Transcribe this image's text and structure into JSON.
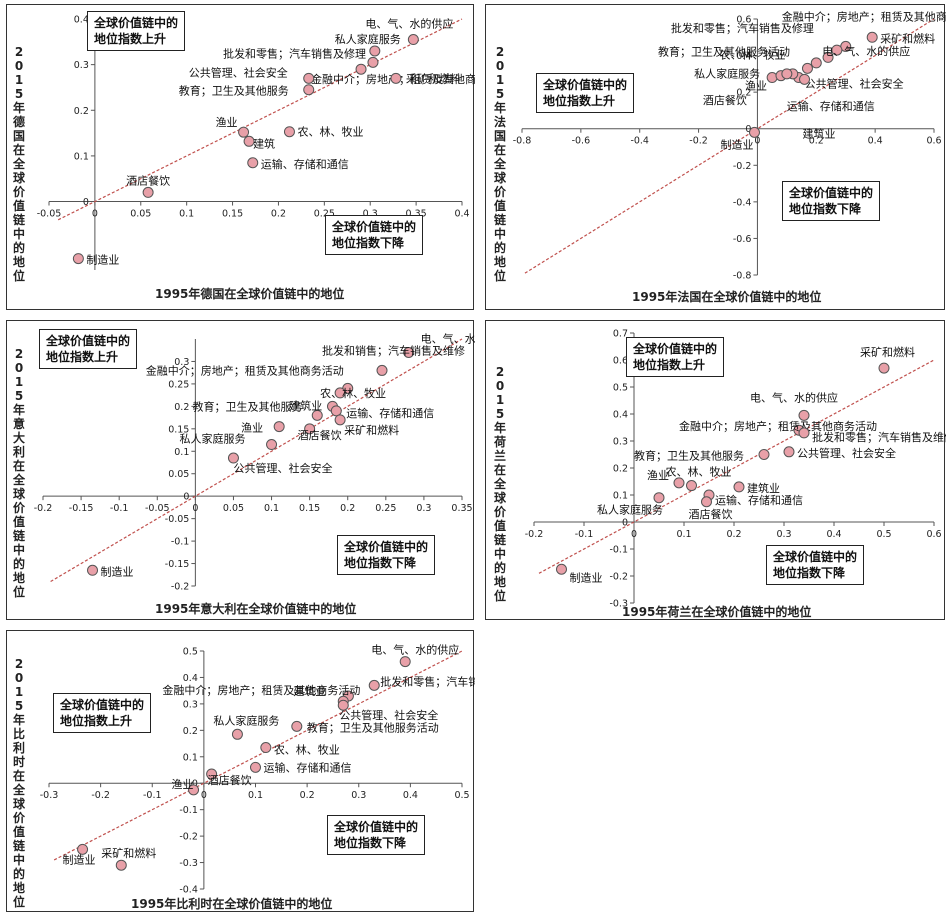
{
  "colors": {
    "point_fill": "#e8a0a8",
    "point_stroke": "#555555",
    "diagonal": "#c0504d",
    "axis": "#555555"
  },
  "chart_data": [
    {
      "id": "germany",
      "type": "scatter",
      "ylabel": "2015年德国在全球价值链中的地位",
      "xlabel": "1995年德国在全球价值链中的地位",
      "box_up": [
        "全球价值链中的",
        "地位指数上升"
      ],
      "box_down": [
        "全球价值链中的",
        "地位指数下降"
      ],
      "xlim": [
        -0.05,
        0.4
      ],
      "ylim": [
        -0.15,
        0.4
      ],
      "xticks": [
        -0.05,
        0,
        0.05,
        0.1,
        0.15,
        0.2,
        0.25,
        0.3,
        0.35,
        0.4
      ],
      "yticks": [
        0,
        0.1,
        0.2,
        0.3,
        0.4
      ],
      "xtick_labels": [
        "-0.05",
        "0",
        "0.05",
        "0.1",
        "0.15",
        "0.2",
        "0.25",
        "0.3",
        "0.35",
        "0.4"
      ],
      "ytick_labels": [
        "0",
        "0.1",
        "0.2",
        "0.3",
        "0.4"
      ],
      "points": [
        {
          "name": "电、气、水的供应",
          "x": 0.347,
          "y": 0.355
        },
        {
          "name": "私人家庭服务",
          "x": 0.305,
          "y": 0.33
        },
        {
          "name": "批发和零售；汽车销售及修理",
          "x": 0.303,
          "y": 0.305
        },
        {
          "name": "金融中介；房地产；租赁及其他商务活动",
          "x": 0.29,
          "y": 0.29
        },
        {
          "name": "采矿和燃料",
          "x": 0.328,
          "y": 0.27
        },
        {
          "name": "公共管理、社会安全",
          "x": 0.233,
          "y": 0.27
        },
        {
          "name": "教育；卫生及其他服务",
          "x": 0.233,
          "y": 0.245
        },
        {
          "name": "渔业",
          "x": 0.162,
          "y": 0.152
        },
        {
          "name": "建筑",
          "x": 0.168,
          "y": 0.132
        },
        {
          "name": "农、林、牧业",
          "x": 0.212,
          "y": 0.153
        },
        {
          "name": "运输、存储和通信",
          "x": 0.172,
          "y": 0.085
        },
        {
          "name": "酒店餐饮",
          "x": 0.058,
          "y": 0.02
        },
        {
          "name": "制造业",
          "x": -0.018,
          "y": -0.125
        }
      ]
    },
    {
      "id": "france",
      "type": "scatter",
      "ylabel": "2015年法国在全球价值链中的地位",
      "xlabel": "1995年法国在全球价值链中的地位",
      "box_up": [
        "全球价值链中的",
        "地位指数上升"
      ],
      "box_down": [
        "全球价值链中的",
        "地位指数下降"
      ],
      "xlim": [
        -0.8,
        0.6
      ],
      "ylim": [
        -0.8,
        0.6
      ],
      "xticks": [
        -0.8,
        -0.6,
        -0.4,
        -0.2,
        0,
        0.2,
        0.4,
        0.6
      ],
      "yticks": [
        -0.8,
        -0.6,
        -0.4,
        -0.2,
        0,
        0.2,
        0.4,
        0.6
      ],
      "xtick_labels": [
        "-0.8",
        "-0.6",
        "-0.4",
        "-0.2",
        "0",
        "0.2",
        "0.4",
        "0.6"
      ],
      "ytick_labels": [
        "-0.8",
        "-0.6",
        "-0.4",
        "-0.2",
        "0",
        "0.2",
        "0.4",
        "0.6"
      ],
      "points": [
        {
          "name": "采矿和燃料",
          "x": 0.39,
          "y": 0.5
        },
        {
          "name": "金融中介；房地产；租赁及其他商务活动",
          "x": 0.3,
          "y": 0.45
        },
        {
          "name": "批发和零售；汽车销售及修理",
          "x": 0.27,
          "y": 0.43
        },
        {
          "name": "教育；卫生及其他服务活动",
          "x": 0.24,
          "y": 0.39
        },
        {
          "name": "电、气、水的供应",
          "x": 0.2,
          "y": 0.36
        },
        {
          "name": "农、林、牧业",
          "x": 0.17,
          "y": 0.33
        },
        {
          "name": "私人家庭服务",
          "x": 0.05,
          "y": 0.28
        },
        {
          "name": "渔业",
          "x": 0.08,
          "y": 0.29
        },
        {
          "name": "公共管理、社会安全",
          "x": 0.14,
          "y": 0.28
        },
        {
          "name": "运输、存储和通信",
          "x": 0.12,
          "y": 0.3
        },
        {
          "name": "酒店餐饮",
          "x": 0.1,
          "y": 0.3
        },
        {
          "name": "建筑业",
          "x": 0.16,
          "y": 0.27
        },
        {
          "name": "制造业",
          "x": -0.01,
          "y": -0.02
        }
      ]
    },
    {
      "id": "italy",
      "type": "scatter",
      "ylabel": "2015年意大利在全球价值链中的地位",
      "xlabel": "1995年意大利在全球价值链中的地位",
      "box_up": [
        "全球价值链中的",
        "地位指数上升"
      ],
      "box_down": [
        "全球价值链中的",
        "地位指数下降"
      ],
      "xlim": [
        -0.2,
        0.35
      ],
      "ylim": [
        -0.2,
        0.35
      ],
      "xticks": [
        -0.2,
        -0.15,
        -0.1,
        -0.05,
        0,
        0.05,
        0.1,
        0.15,
        0.2,
        0.25,
        0.3,
        0.35
      ],
      "yticks": [
        -0.2,
        -0.15,
        -0.1,
        -0.05,
        0,
        0.05,
        0.1,
        0.15,
        0.2,
        0.25,
        0.3
      ],
      "xtick_labels": [
        "-0.2",
        "-0.15",
        "-0.1",
        "-0.05",
        "0",
        "0.05",
        "0.1",
        "0.15",
        "0.2",
        "0.25",
        "0.3",
        "0.35"
      ],
      "ytick_labels": [
        "-0.2",
        "-0.15",
        "-0.1",
        "-0.05",
        "0",
        "0.05",
        "0.1",
        "0.15",
        "0.2",
        "0.25",
        "0.3"
      ],
      "points": [
        {
          "name": "电、气、水的供应",
          "x": 0.28,
          "y": 0.32
        },
        {
          "name": "批发和销售；汽车销售及维修",
          "x": 0.245,
          "y": 0.28
        },
        {
          "name": "金融中介；房地产；租赁及其他商务活动",
          "x": 0.2,
          "y": 0.24
        },
        {
          "name": "农、林、牧业",
          "x": 0.19,
          "y": 0.23
        },
        {
          "name": "教育；卫生及其他服务",
          "x": 0.18,
          "y": 0.2
        },
        {
          "name": "运输、存储和通信",
          "x": 0.185,
          "y": 0.19
        },
        {
          "name": "建筑业",
          "x": 0.16,
          "y": 0.18
        },
        {
          "name": "采矿和燃料",
          "x": 0.19,
          "y": 0.17
        },
        {
          "name": "渔业",
          "x": 0.11,
          "y": 0.155
        },
        {
          "name": "酒店餐饮",
          "x": 0.15,
          "y": 0.15
        },
        {
          "name": "私人家庭服务",
          "x": 0.1,
          "y": 0.115
        },
        {
          "name": "公共管理、社会安全",
          "x": 0.05,
          "y": 0.085
        },
        {
          "name": "制造业",
          "x": -0.135,
          "y": -0.165
        }
      ]
    },
    {
      "id": "netherlands",
      "type": "scatter",
      "ylabel": "2015年荷兰在全球价值链中的地位",
      "xlabel": "1995年荷兰在全球价值链中的地位",
      "box_up": [
        "全球价值链中的",
        "地位指数上升"
      ],
      "box_down": [
        "全球价值链中的",
        "地位指数下降"
      ],
      "xlim": [
        -0.2,
        0.6
      ],
      "ylim": [
        -0.3,
        0.7
      ],
      "xticks": [
        -0.2,
        -0.1,
        0,
        0.1,
        0.2,
        0.3,
        0.4,
        0.5,
        0.6
      ],
      "yticks": [
        -0.3,
        -0.2,
        -0.1,
        0,
        0.1,
        0.2,
        0.3,
        0.4,
        0.5,
        0.6,
        0.7
      ],
      "xtick_labels": [
        "-0.2",
        "-0.1",
        "0",
        "0.1",
        "0.2",
        "0.3",
        "0.4",
        "0.5",
        "0.6"
      ],
      "ytick_labels": [
        "-0.3",
        "-0.2",
        "-0.1",
        "0",
        "0.1",
        "0.2",
        "0.3",
        "0.4",
        "0.5",
        "0.6",
        "0.7"
      ],
      "points": [
        {
          "name": "采矿和燃料",
          "x": 0.5,
          "y": 0.57
        },
        {
          "name": "电、气、水的供应",
          "x": 0.34,
          "y": 0.395
        },
        {
          "name": "金融中介；房地产；租赁及其他商务活动",
          "x": 0.33,
          "y": 0.34
        },
        {
          "name": "批发和零售；汽车销售及维修",
          "x": 0.34,
          "y": 0.33
        },
        {
          "name": "公共管理、社会安全",
          "x": 0.31,
          "y": 0.26
        },
        {
          "name": "教育；卫生及其他服务",
          "x": 0.26,
          "y": 0.25
        },
        {
          "name": "农、林、牧业",
          "x": 0.115,
          "y": 0.135
        },
        {
          "name": "渔业",
          "x": 0.09,
          "y": 0.145
        },
        {
          "name": "建筑业",
          "x": 0.21,
          "y": 0.13
        },
        {
          "name": "私人家庭服务",
          "x": 0.05,
          "y": 0.09
        },
        {
          "name": "运输、存储和通信",
          "x": 0.15,
          "y": 0.1
        },
        {
          "name": "酒店餐饮",
          "x": 0.145,
          "y": 0.075
        },
        {
          "name": "制造业",
          "x": -0.145,
          "y": -0.175
        }
      ]
    },
    {
      "id": "belgium",
      "type": "scatter",
      "ylabel": "2015年比利时在全球价值链中的地位",
      "xlabel": "1995年比利时在全球价值链中的地位",
      "box_up": [
        "全球价值链中的",
        "地位指数上升"
      ],
      "box_down": [
        "全球价值链中的",
        "地位指数下降"
      ],
      "xlim": [
        -0.3,
        0.5
      ],
      "ylim": [
        -0.4,
        0.5
      ],
      "xticks": [
        -0.3,
        -0.2,
        -0.1,
        0,
        0.1,
        0.2,
        0.3,
        0.4,
        0.5
      ],
      "yticks": [
        -0.4,
        -0.3,
        -0.2,
        -0.1,
        0,
        0.1,
        0.2,
        0.3,
        0.4,
        0.5
      ],
      "xtick_labels": [
        "-0.3",
        "-0.2",
        "-0.1",
        "0",
        "0.1",
        "0.2",
        "0.3",
        "0.4",
        "0.5"
      ],
      "ytick_labels": [
        "-0.4",
        "-0.3",
        "-0.2",
        "-0.1",
        "0",
        "0.1",
        "0.2",
        "0.3",
        "0.4",
        "0.5"
      ],
      "points": [
        {
          "name": "电、气、水的供应",
          "x": 0.39,
          "y": 0.46
        },
        {
          "name": "批发和零售；汽车销售及修理",
          "x": 0.33,
          "y": 0.37
        },
        {
          "name": "金融中介；房地产；租赁及其他商务活动",
          "x": 0.28,
          "y": 0.33
        },
        {
          "name": "建筑业",
          "x": 0.27,
          "y": 0.31
        },
        {
          "name": "公共管理、社会安全",
          "x": 0.27,
          "y": 0.295
        },
        {
          "name": "教育；卫生及其他服务活动",
          "x": 0.18,
          "y": 0.215
        },
        {
          "name": "私人家庭服务",
          "x": 0.065,
          "y": 0.185
        },
        {
          "name": "农、林、牧业",
          "x": 0.12,
          "y": 0.135
        },
        {
          "name": "运输、存储和通信",
          "x": 0.1,
          "y": 0.06
        },
        {
          "name": "酒店餐饮",
          "x": 0.015,
          "y": 0.035
        },
        {
          "name": "渔业",
          "x": -0.02,
          "y": -0.025
        },
        {
          "name": "制造业",
          "x": -0.235,
          "y": -0.25
        },
        {
          "name": "采矿和燃料",
          "x": -0.16,
          "y": -0.31
        }
      ]
    }
  ]
}
